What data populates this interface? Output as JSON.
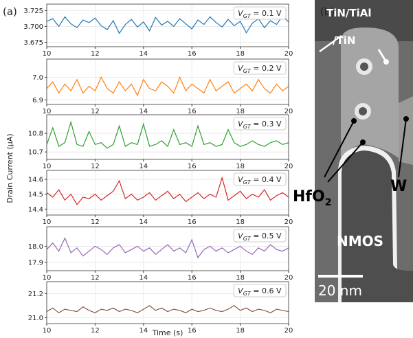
{
  "figure": {
    "panel_label": "(a)",
    "ylabel": "Drain Current (μA)",
    "xlabel": "Time (s)"
  },
  "chart_data": [
    {
      "type": "line",
      "label_main": "V",
      "label_sub": "GT",
      "label_rest": " = 0.1 V",
      "x": [
        10,
        10.25,
        10.5,
        10.75,
        11,
        11.25,
        11.5,
        11.75,
        12,
        12.25,
        12.5,
        12.75,
        13,
        13.25,
        13.5,
        13.75,
        14,
        14.25,
        14.5,
        14.75,
        15,
        15.25,
        15.5,
        15.75,
        16,
        16.25,
        16.5,
        16.75,
        17,
        17.25,
        17.5,
        17.75,
        18,
        18.25,
        18.5,
        18.75,
        19,
        19.25,
        19.5,
        19.75,
        20
      ],
      "series": [
        {
          "color": "#1f77b4",
          "values": [
            3.708,
            3.712,
            3.7,
            3.715,
            3.704,
            3.698,
            3.71,
            3.706,
            3.713,
            3.701,
            3.695,
            3.709,
            3.689,
            3.703,
            3.711,
            3.699,
            3.707,
            3.693,
            3.714,
            3.702,
            3.708,
            3.7,
            3.712,
            3.704,
            3.696,
            3.71,
            3.703,
            3.715,
            3.706,
            3.699,
            3.711,
            3.701,
            3.708,
            3.69,
            3.705,
            3.712,
            3.698,
            3.709,
            3.703,
            3.716,
            3.707
          ]
        }
      ],
      "xlim": [
        10,
        20
      ],
      "xticks": [
        10,
        12,
        14,
        16,
        18,
        20
      ],
      "ylim": [
        3.668,
        3.735
      ],
      "yticks": [
        3.675,
        {
          "value": 3.7,
          "label": "3.700"
        },
        3.725
      ],
      "grid": true
    },
    {
      "type": "line",
      "label_main": "V",
      "label_sub": "GT",
      "label_rest": " = 0.2 V",
      "x": [
        10,
        10.25,
        10.5,
        10.75,
        11,
        11.25,
        11.5,
        11.75,
        12,
        12.25,
        12.5,
        12.75,
        13,
        13.25,
        13.5,
        13.75,
        14,
        14.25,
        14.5,
        14.75,
        15,
        15.25,
        15.5,
        15.75,
        16,
        16.25,
        16.5,
        16.75,
        17,
        17.25,
        17.5,
        17.75,
        18,
        18.25,
        18.5,
        18.75,
        19,
        19.25,
        19.5,
        19.75,
        20
      ],
      "series": [
        {
          "color": "#ff7f0e",
          "values": [
            6.95,
            6.98,
            6.93,
            6.97,
            6.94,
            6.99,
            6.93,
            6.96,
            6.94,
            7.0,
            6.95,
            6.93,
            6.98,
            6.94,
            6.97,
            6.92,
            6.99,
            6.95,
            6.94,
            6.98,
            6.96,
            6.93,
            7.0,
            6.94,
            6.97,
            6.95,
            6.93,
            6.99,
            6.94,
            6.96,
            6.98,
            6.93,
            6.95,
            6.97,
            6.94,
            6.99,
            6.95,
            6.93,
            6.97,
            6.94,
            6.96
          ]
        }
      ],
      "xlim": [
        10,
        20
      ],
      "xticks": [
        10,
        12,
        14,
        16,
        18,
        20
      ],
      "ylim": [
        6.88,
        7.08
      ],
      "yticks": [
        6.9,
        {
          "value": 7,
          "label": "7.0"
        }
      ],
      "grid": true
    },
    {
      "type": "line",
      "label_main": "V",
      "label_sub": "GT",
      "label_rest": " = 0.3 V",
      "x": [
        10,
        10.25,
        10.5,
        10.75,
        11,
        11.25,
        11.5,
        11.75,
        12,
        12.25,
        12.5,
        12.75,
        13,
        13.25,
        13.5,
        13.75,
        14,
        14.25,
        14.5,
        14.75,
        15,
        15.25,
        15.5,
        15.75,
        16,
        16.25,
        16.5,
        16.75,
        17,
        17.25,
        17.5,
        17.75,
        18,
        18.25,
        18.5,
        18.75,
        19,
        19.25,
        19.5,
        19.75,
        20
      ],
      "series": [
        {
          "color": "#2ca02c",
          "values": [
            10.74,
            10.83,
            10.73,
            10.75,
            10.86,
            10.74,
            10.73,
            10.81,
            10.74,
            10.75,
            10.72,
            10.74,
            10.84,
            10.73,
            10.75,
            10.74,
            10.85,
            10.73,
            10.74,
            10.76,
            10.73,
            10.82,
            10.74,
            10.75,
            10.73,
            10.84,
            10.74,
            10.75,
            10.73,
            10.74,
            10.82,
            10.75,
            10.73,
            10.74,
            10.76,
            10.74,
            10.73,
            10.75,
            10.76,
            10.74,
            10.75
          ]
        }
      ],
      "xlim": [
        10,
        20
      ],
      "xticks": [
        10,
        12,
        14,
        16,
        18,
        20
      ],
      "ylim": [
        10.66,
        10.9
      ],
      "yticks": [
        10.7,
        10.8
      ],
      "grid": true
    },
    {
      "type": "line",
      "label_main": "V",
      "label_sub": "GT",
      "label_rest": " = 0.4 V",
      "x": [
        10,
        10.25,
        10.5,
        10.75,
        11,
        11.25,
        11.5,
        11.75,
        12,
        12.25,
        12.5,
        12.75,
        13,
        13.25,
        13.5,
        13.75,
        14,
        14.25,
        14.5,
        14.75,
        15,
        15.25,
        15.5,
        15.75,
        16,
        16.25,
        16.5,
        16.75,
        17,
        17.25,
        17.5,
        17.75,
        18,
        18.25,
        18.5,
        18.75,
        19,
        19.25,
        19.5,
        19.75,
        20
      ],
      "series": [
        {
          "color": "#d62728",
          "values": [
            14.51,
            14.48,
            14.53,
            14.46,
            14.5,
            14.43,
            14.48,
            14.47,
            14.5,
            14.46,
            14.49,
            14.52,
            14.59,
            14.47,
            14.5,
            14.46,
            14.48,
            14.51,
            14.46,
            14.49,
            14.52,
            14.47,
            14.5,
            14.45,
            14.48,
            14.51,
            14.47,
            14.5,
            14.48,
            14.61,
            14.46,
            14.49,
            14.52,
            14.47,
            14.5,
            14.48,
            14.53,
            14.46,
            14.49,
            14.51,
            14.48
          ]
        }
      ],
      "xlim": [
        10,
        20
      ],
      "xticks": [
        10,
        12,
        14,
        16,
        18,
        20
      ],
      "ylim": [
        14.36,
        14.66
      ],
      "yticks": [
        14.4,
        14.5,
        14.6
      ],
      "grid": true
    },
    {
      "type": "line",
      "label_main": "V",
      "label_sub": "GT",
      "label_rest": " = 0.5 V",
      "x": [
        10,
        10.25,
        10.5,
        10.75,
        11,
        11.25,
        11.5,
        11.75,
        12,
        12.25,
        12.5,
        12.75,
        13,
        13.25,
        13.5,
        13.75,
        14,
        14.25,
        14.5,
        14.75,
        15,
        15.25,
        15.5,
        15.75,
        16,
        16.25,
        16.5,
        16.75,
        17,
        17.25,
        17.5,
        17.75,
        18,
        18.25,
        18.5,
        18.75,
        19,
        19.25,
        19.5,
        19.75,
        20
      ],
      "series": [
        {
          "color": "#9467bd",
          "values": [
            17.98,
            18.02,
            17.97,
            18.05,
            17.96,
            17.99,
            17.94,
            17.97,
            18.0,
            17.98,
            17.95,
            17.99,
            18.01,
            17.96,
            17.98,
            18.0,
            17.97,
            17.99,
            17.95,
            17.98,
            18.01,
            17.97,
            17.99,
            17.96,
            18.04,
            17.93,
            17.98,
            18.0,
            17.97,
            17.99,
            17.96,
            17.98,
            18.0,
            17.97,
            17.95,
            17.99,
            17.97,
            18.01,
            17.98,
            17.97,
            17.99
          ]
        }
      ],
      "xlim": [
        10,
        20
      ],
      "xticks": [
        10,
        12,
        14,
        16,
        18,
        20
      ],
      "ylim": [
        17.85,
        18.12
      ],
      "yticks": [
        17.9,
        {
          "value": 18,
          "label": "18.0"
        }
      ],
      "grid": true
    },
    {
      "type": "line",
      "label_main": "V",
      "label_sub": "GT",
      "label_rest": " = 0.6 V",
      "x": [
        10,
        10.25,
        10.5,
        10.75,
        11,
        11.25,
        11.5,
        11.75,
        12,
        12.25,
        12.5,
        12.75,
        13,
        13.25,
        13.5,
        13.75,
        14,
        14.25,
        14.5,
        14.75,
        15,
        15.25,
        15.5,
        15.75,
        16,
        16.25,
        16.5,
        16.75,
        17,
        17.25,
        17.5,
        17.75,
        18,
        18.25,
        18.5,
        18.75,
        19,
        19.25,
        19.5,
        19.75,
        20
      ],
      "series": [
        {
          "color": "#8c564b",
          "values": [
            21.05,
            21.08,
            21.04,
            21.07,
            21.06,
            21.05,
            21.09,
            21.06,
            21.04,
            21.07,
            21.06,
            21.08,
            21.05,
            21.07,
            21.06,
            21.04,
            21.07,
            21.1,
            21.06,
            21.08,
            21.05,
            21.07,
            21.06,
            21.04,
            21.07,
            21.05,
            21.06,
            21.08,
            21.06,
            21.05,
            21.07,
            21.1,
            21.06,
            21.08,
            21.05,
            21.07,
            21.06,
            21.04,
            21.07,
            21.06,
            21.05
          ]
        }
      ],
      "xlim": [
        10,
        20
      ],
      "xticks": [
        10,
        12,
        14,
        16,
        18,
        20
      ],
      "ylim": [
        20.95,
        21.3
      ],
      "yticks": [
        {
          "value": 21,
          "label": "21.0"
        },
        21.2
      ],
      "grid": true
    }
  ],
  "image": {
    "panel_label": "(b)",
    "gate_label_1": "TiN/TiAl",
    "gate_label_2": "/TiN",
    "oxide_label": "HfO",
    "oxide_sub": "2",
    "metal_label": "W",
    "device_label": "NMOS",
    "scale_label": "20 nm"
  }
}
